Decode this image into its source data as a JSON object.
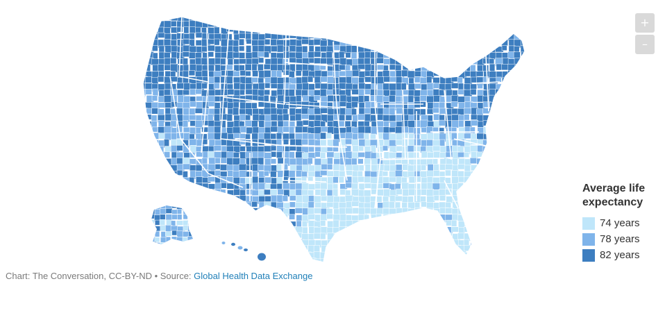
{
  "zoom": {
    "in_label": "+",
    "out_label": "–"
  },
  "legend": {
    "title": "Average life expectancy",
    "items": [
      {
        "label": "74 years",
        "color": "#bfe6fa"
      },
      {
        "label": "78 years",
        "color": "#7fb4ea"
      },
      {
        "label": "82 years",
        "color": "#3d7ec0"
      }
    ]
  },
  "credit": {
    "text": "Chart: The Conversation, CC-BY-ND • Source: ",
    "link_text": "Global Health Data Exchange"
  },
  "colors": {
    "low": "#bfe6fa",
    "mid": "#7fb4ea",
    "high": "#3d7ec0",
    "border": "#ffffff"
  }
}
